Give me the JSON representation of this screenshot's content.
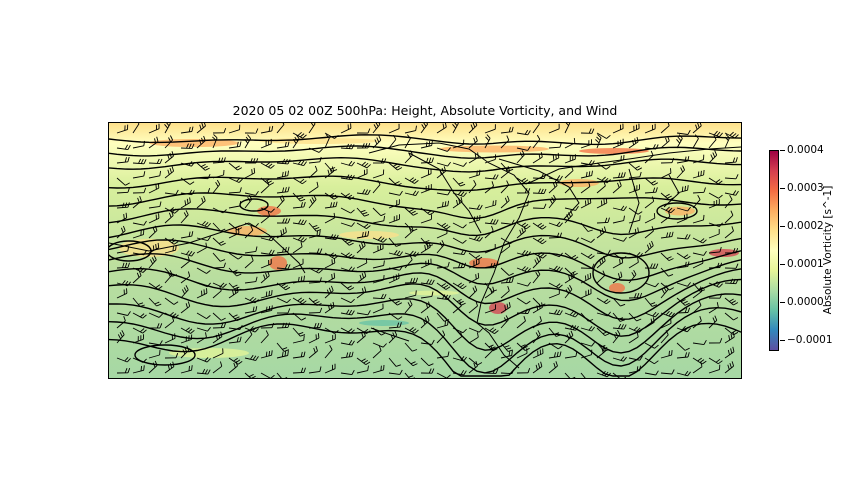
{
  "title": "2020 05 02 00Z 500hPa: Height, Absolute Vorticity, and Wind",
  "colorbar": {
    "label": "Absolute Vorticity [s^-1]",
    "ticks": [
      "0.0004",
      "0.0003",
      "0.0002",
      "0.0001",
      "0.0000",
      "−0.0001"
    ],
    "tick_values": [
      0.0004,
      0.0003,
      0.0002,
      0.0001,
      0.0,
      -0.0001
    ],
    "range": [
      -0.00013,
      0.0004
    ],
    "colormap": "Spectral_r",
    "colors": [
      "#5e4fa2",
      "#3288bd",
      "#66c2a5",
      "#abdda4",
      "#e6f598",
      "#ffffbf",
      "#fee08b",
      "#fdae61",
      "#f46d43",
      "#d53e4f",
      "#9e0142"
    ]
  },
  "map": {
    "background": "#b7d98a",
    "contour_color": "#000000",
    "barb_color": "#000000"
  }
}
